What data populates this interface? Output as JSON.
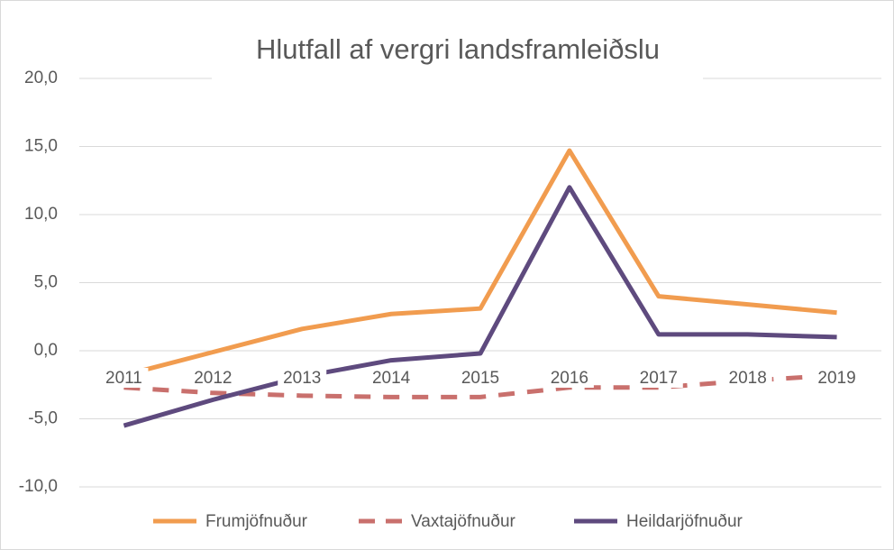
{
  "chart_data": {
    "type": "line",
    "title": "Hlutfall af vergri landsframleiðslu",
    "categories": [
      "2011",
      "2012",
      "2013",
      "2014",
      "2015",
      "2016",
      "2017",
      "2018",
      "2019"
    ],
    "series": [
      {
        "name": "Frumjöfnuður",
        "color": "#f19c4f",
        "style": "solid",
        "values": [
          -1.8,
          -0.1,
          1.6,
          2.7,
          3.1,
          14.7,
          4.0,
          3.4,
          2.8
        ]
      },
      {
        "name": "Vaxtajöfnuður",
        "color": "#c9706d",
        "style": "dashed",
        "values": [
          -2.7,
          -3.1,
          -3.3,
          -3.4,
          -3.4,
          -2.7,
          -2.7,
          -2.2,
          -1.8
        ]
      },
      {
        "name": "Heildarjöfnuður",
        "color": "#5e4a7e",
        "style": "solid",
        "values": [
          -5.5,
          -3.6,
          -1.9,
          -0.7,
          -0.2,
          12.0,
          1.2,
          1.2,
          1.0
        ]
      }
    ],
    "ylim": [
      -10,
      20
    ],
    "yticks": [
      {
        "value": -10,
        "label": "-10,0"
      },
      {
        "value": -5,
        "label": "-5,0"
      },
      {
        "value": 0,
        "label": "0,0"
      },
      {
        "value": 5,
        "label": "5,0"
      },
      {
        "value": 10,
        "label": "10,0"
      },
      {
        "value": 15,
        "label": "15,0"
      },
      {
        "value": 20,
        "label": "20,0"
      }
    ],
    "grid": true,
    "legend": "bottom"
  }
}
